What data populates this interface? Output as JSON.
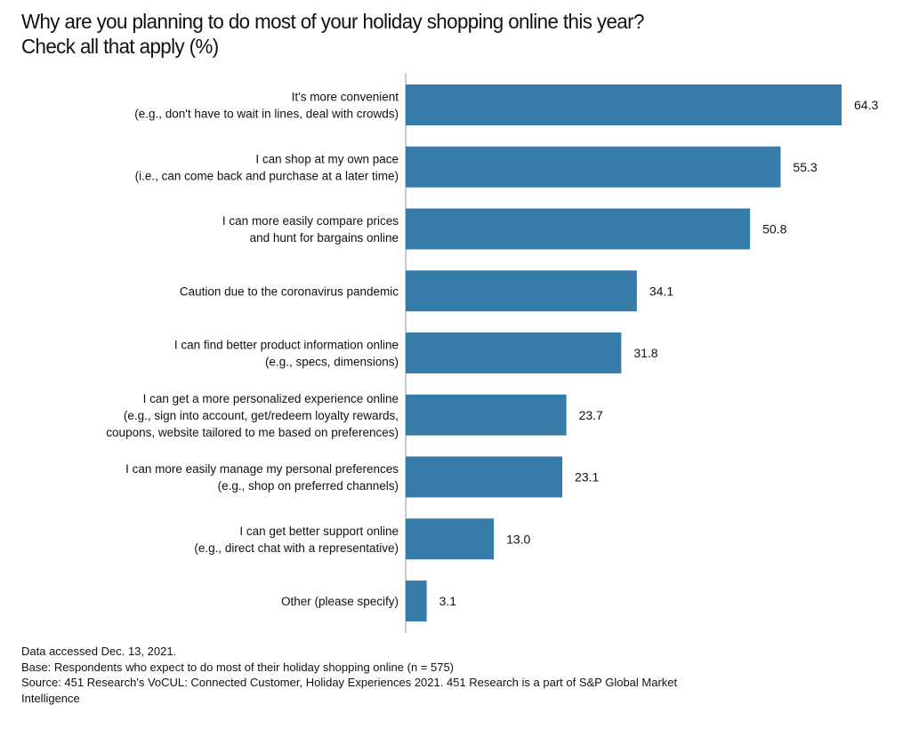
{
  "chart_data": {
    "type": "bar",
    "orientation": "horizontal",
    "title": [
      "Why are you planning to do most of your holiday shopping online this year?",
      "Check all that apply (%)"
    ],
    "xlabel": "",
    "ylabel": "",
    "xlim": [
      0,
      64.3
    ],
    "grid": false,
    "bar_color": "#357ca8",
    "categories": [
      [
        "It's more convenient",
        "(e.g., don't have to wait in lines, deal with crowds)"
      ],
      [
        "I can shop at my own pace",
        "(i.e., can come back and purchase at a later time)"
      ],
      [
        "I can more easily compare prices",
        "and hunt for bargains online"
      ],
      [
        "Caution due to the coronavirus pandemic"
      ],
      [
        "I can find better product information online",
        "(e.g., specs, dimensions)"
      ],
      [
        "I can get a more personalized experience online",
        "(e.g., sign into account, get/redeem loyalty rewards,",
        "coupons, website tailored to me based on preferences)"
      ],
      [
        "I can more easily manage my personal preferences",
        "(e.g., shop on preferred channels)"
      ],
      [
        "I can get better support online",
        "(e.g., direct chat with a representative)"
      ],
      [
        "Other (please specify)"
      ]
    ],
    "values": [
      64.3,
      55.3,
      50.8,
      34.1,
      31.8,
      23.7,
      23.1,
      13.0,
      3.1
    ],
    "value_labels": [
      "64.3",
      "55.3",
      "50.8",
      "34.1",
      "31.8",
      "23.7",
      "23.1",
      "13.0",
      "3.1"
    ]
  },
  "notes": {
    "accessed": "Data accessed Dec. 13, 2021.",
    "base": "Base: Respondents who expect to do most of their holiday shopping online (n = 575)",
    "source": "Source: 451 Research's VoCUL: Connected Customer, Holiday Experiences 2021. 451 Research is a part of S&P Global Market Intelligence"
  }
}
